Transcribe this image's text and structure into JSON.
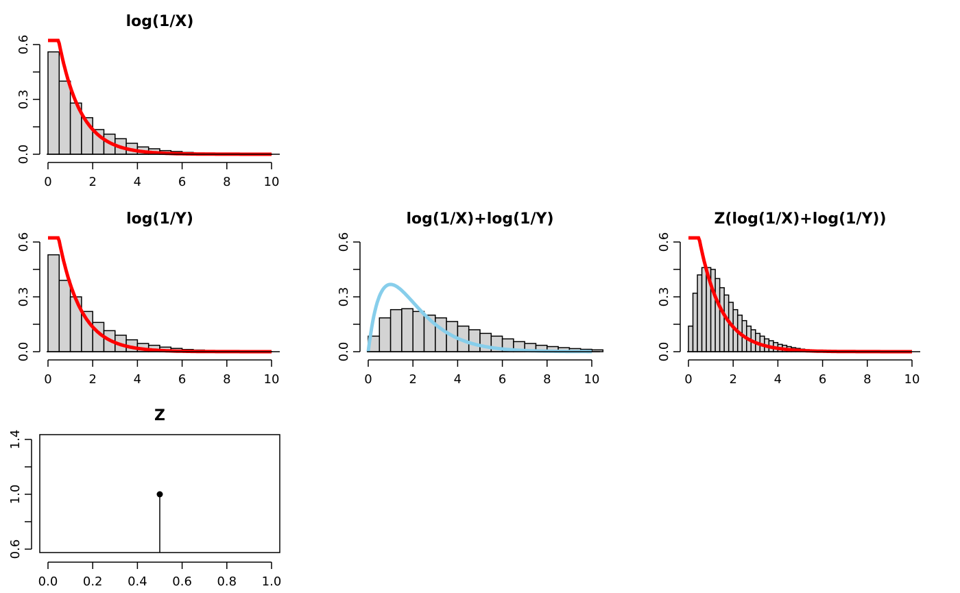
{
  "chart_data": [
    {
      "id": "p1",
      "type": "bar",
      "title": "log(1/X)",
      "xlim": [
        0,
        10
      ],
      "ylim": [
        0,
        0.6
      ],
      "xticks": [
        "0",
        "2",
        "4",
        "6",
        "8",
        "10"
      ],
      "yticks": [
        "0.0",
        "0.3",
        "0.6"
      ],
      "bin_width": 0.5,
      "values": [
        0.56,
        0.4,
        0.28,
        0.2,
        0.135,
        0.11,
        0.085,
        0.06,
        0.04,
        0.03,
        0.02,
        0.015,
        0.01,
        0.007,
        0.005,
        0.003,
        0.002,
        0.001,
        0.001,
        0.001
      ],
      "curve": {
        "kind": "exp",
        "rate": 1,
        "color": "#ff0000"
      }
    },
    {
      "id": "p2",
      "type": "bar",
      "title": "log(1/Y)",
      "xlim": [
        0,
        10
      ],
      "ylim": [
        0,
        0.6
      ],
      "xticks": [
        "0",
        "2",
        "4",
        "6",
        "8",
        "10"
      ],
      "yticks": [
        "0.0",
        "0.3",
        "0.6"
      ],
      "bin_width": 0.5,
      "values": [
        0.53,
        0.39,
        0.3,
        0.22,
        0.16,
        0.115,
        0.09,
        0.065,
        0.045,
        0.035,
        0.025,
        0.018,
        0.012,
        0.009,
        0.006,
        0.004,
        0.003,
        0.002,
        0.001,
        0.001
      ],
      "curve": {
        "kind": "exp",
        "rate": 1,
        "color": "#ff0000"
      }
    },
    {
      "id": "p3",
      "type": "bar",
      "title": "log(1/X)+log(1/Y)",
      "xlim": [
        0,
        10
      ],
      "ylim": [
        0,
        0.6
      ],
      "xticks": [
        "0",
        "2",
        "4",
        "6",
        "8",
        "10"
      ],
      "yticks": [
        "0.0",
        "0.3",
        "0.6"
      ],
      "bin_width": 0.5,
      "values": [
        0.085,
        0.185,
        0.23,
        0.235,
        0.22,
        0.2,
        0.185,
        0.165,
        0.14,
        0.12,
        0.1,
        0.085,
        0.07,
        0.055,
        0.045,
        0.035,
        0.028,
        0.022,
        0.017,
        0.013,
        0.01
      ],
      "curve": {
        "kind": "gamma2",
        "rate": 1,
        "color": "#87ceeb"
      }
    },
    {
      "id": "p4",
      "type": "bar",
      "title": "Z(log(1/X)+log(1/Y))",
      "xlim": [
        0,
        10
      ],
      "ylim": [
        0,
        0.6
      ],
      "xticks": [
        "0",
        "2",
        "4",
        "6",
        "8",
        "10"
      ],
      "yticks": [
        "0.0",
        "0.3",
        "0.6"
      ],
      "bin_width": 0.2,
      "values": [
        0.14,
        0.32,
        0.42,
        0.46,
        0.46,
        0.45,
        0.4,
        0.35,
        0.31,
        0.27,
        0.23,
        0.2,
        0.17,
        0.14,
        0.12,
        0.1,
        0.085,
        0.07,
        0.06,
        0.05,
        0.04,
        0.035,
        0.028,
        0.022,
        0.018,
        0.014,
        0.011,
        0.009,
        0.007,
        0.005,
        0.004,
        0.003,
        0.002,
        0.002,
        0.001
      ],
      "curve": {
        "kind": "exp",
        "rate": 1,
        "color": "#ff0000"
      }
    },
    {
      "id": "p5",
      "type": "scatter",
      "title": "Z",
      "xlim": [
        0,
        1
      ],
      "ylim": [
        0.6,
        1.4
      ],
      "xticks": [
        "0.0",
        "0.2",
        "0.4",
        "0.6",
        "0.8",
        "1.0"
      ],
      "yticks": [
        "0.6",
        "1.0",
        "1.4"
      ],
      "points": [
        {
          "x": 0.5,
          "y": 1.0
        }
      ],
      "boxed": true
    }
  ]
}
